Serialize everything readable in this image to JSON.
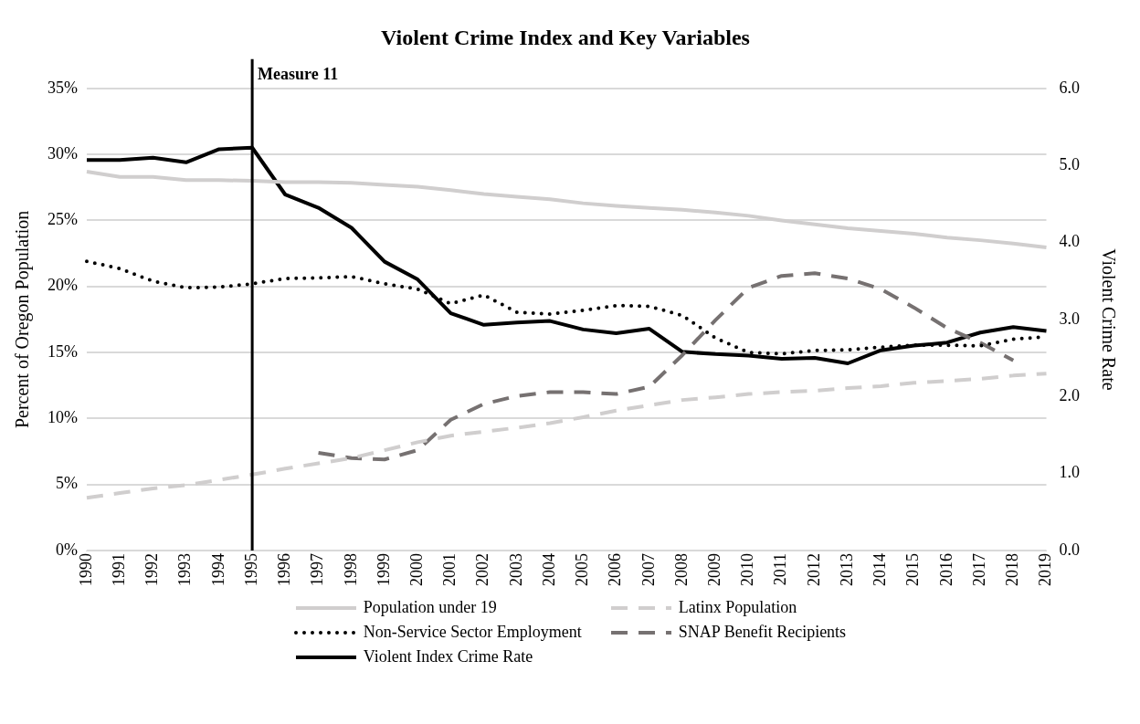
{
  "chart_data": {
    "type": "line",
    "title": "Violent Crime Index and Key Variables",
    "ylabel": "Percent of Oregon Population",
    "y2label": "Violent Crime Rate",
    "categories": [
      "1990",
      "1991",
      "1992",
      "1993",
      "1994",
      "1995",
      "1996",
      "1997",
      "1998",
      "1999",
      "2000",
      "2001",
      "2002",
      "2003",
      "2004",
      "2005",
      "2006",
      "2007",
      "2008",
      "2009",
      "2010",
      "2011",
      "2012",
      "2013",
      "2014",
      "2015",
      "2016",
      "2017",
      "2018",
      "2019"
    ],
    "series": [
      {
        "name": "Population under 19",
        "color": "#d0cece",
        "line_style": "solid",
        "values": [
          28.7,
          28.3,
          28.3,
          28.05,
          28.05,
          28.0,
          27.9,
          27.9,
          27.85,
          27.7,
          27.55,
          27.3,
          27.0,
          26.8,
          26.6,
          26.3,
          26.1,
          25.95,
          25.8,
          25.6,
          25.35,
          25.0,
          24.7,
          24.4,
          24.2,
          24.0,
          23.7,
          23.5,
          23.25,
          22.95
        ]
      },
      {
        "name": "Latinx Population",
        "color": "#d0cece",
        "line_style": "dashed",
        "values": [
          4.0,
          4.35,
          4.7,
          4.95,
          5.35,
          5.75,
          6.2,
          6.6,
          7.0,
          7.6,
          8.2,
          8.7,
          9.0,
          9.3,
          9.65,
          10.1,
          10.6,
          11.0,
          11.4,
          11.6,
          11.85,
          12.0,
          12.1,
          12.3,
          12.45,
          12.7,
          12.85,
          13.0,
          13.25,
          13.4
        ]
      },
      {
        "name": "Non-Service Sector Employment",
        "color": "#000000",
        "line_style": "dotted",
        "values": [
          21.9,
          21.35,
          20.4,
          19.9,
          19.95,
          20.2,
          20.6,
          20.65,
          20.75,
          20.2,
          19.8,
          18.7,
          19.35,
          18.05,
          17.9,
          18.2,
          18.55,
          18.5,
          17.8,
          16.1,
          15.0,
          14.9,
          15.15,
          15.2,
          15.4,
          15.55,
          15.55,
          15.5,
          16.0,
          16.2
        ]
      },
      {
        "name": "SNAP Benefit Recipients",
        "color": "#767171",
        "line_style": "dashed",
        "values": [
          null,
          null,
          null,
          null,
          null,
          null,
          null,
          7.4,
          7.0,
          6.9,
          7.6,
          9.9,
          11.1,
          11.7,
          12.0,
          12.0,
          11.85,
          12.4,
          14.8,
          17.45,
          19.9,
          20.8,
          21.0,
          20.6,
          19.8,
          18.4,
          16.85,
          15.75,
          14.4,
          null
        ]
      },
      {
        "name": "Violent Index Crime Rate",
        "color": "#000000",
        "line_style": "solid",
        "axis": "y2",
        "values": [
          5.07,
          5.07,
          5.1,
          5.04,
          5.21,
          5.23,
          4.62,
          4.45,
          4.19,
          3.75,
          3.52,
          3.08,
          2.93,
          2.96,
          2.98,
          2.87,
          2.82,
          2.88,
          2.58,
          2.55,
          2.53,
          2.49,
          2.5,
          2.43,
          2.6,
          2.66,
          2.7,
          2.83,
          2.9,
          2.85
        ]
      }
    ],
    "ylim": [
      0,
      35
    ],
    "yticks": [
      {
        "value": 0,
        "label": "0%"
      },
      {
        "value": 5,
        "label": "5%"
      },
      {
        "value": 10,
        "label": "10%"
      },
      {
        "value": 15,
        "label": "15%"
      },
      {
        "value": 20,
        "label": "20%"
      },
      {
        "value": 25,
        "label": "25%"
      },
      {
        "value": 30,
        "label": "30%"
      },
      {
        "value": 35,
        "label": "35%"
      }
    ],
    "y2lim": [
      0,
      6
    ],
    "y2ticks": [
      {
        "value": 0,
        "label": "0.0"
      },
      {
        "value": 1,
        "label": "1.0"
      },
      {
        "value": 2,
        "label": "2.0"
      },
      {
        "value": 3,
        "label": "3.0"
      },
      {
        "value": 4,
        "label": "4.0"
      },
      {
        "value": 5,
        "label": "5.0"
      },
      {
        "value": 6,
        "label": "6.0"
      }
    ],
    "ref_lines": [
      {
        "axis": "x",
        "value": "1995",
        "label": "Measure 11",
        "color": "#000000"
      }
    ],
    "grid": "y",
    "legend": "bottom",
    "marker": "none"
  }
}
